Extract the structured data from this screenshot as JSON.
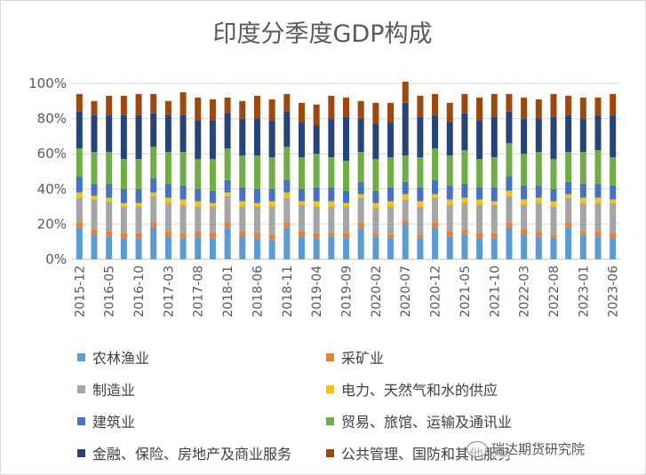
{
  "chart_data": {
    "type": "bar",
    "stacked": true,
    "title": "印度分季度GDP构成",
    "ylim": [
      0,
      100
    ],
    "yticks": [
      "0%",
      "20%",
      "40%",
      "60%",
      "80%",
      "100%"
    ],
    "categories": [
      "2015-12",
      "2016-03",
      "2016-05",
      "2016-08",
      "2016-10",
      "2017-01",
      "2017-03",
      "2017-06",
      "2017-08",
      "2017-11",
      "2018-01",
      "2018-04",
      "2018-06",
      "2018-09",
      "2018-11",
      "2019-02",
      "2019-04",
      "2019-07",
      "2019-09",
      "2019-12",
      "2020-02",
      "2020-05",
      "2020-07",
      "2020-10",
      "2020-12",
      "2021-03",
      "2021-05",
      "2021-08",
      "2021-10",
      "2022-01",
      "2022-03",
      "2022-06",
      "2022-08",
      "2022-11",
      "2023-01",
      "2023-04",
      "2023-06"
    ],
    "xtick_labels": [
      "2015-12",
      "2016-05",
      "2016-10",
      "2017-03",
      "2017-08",
      "2018-01",
      "2018-06",
      "2018-11",
      "2019-04",
      "2019-09",
      "2020-02",
      "2020-07",
      "2020-12",
      "2021-05",
      "2021-10",
      "2022-03",
      "2022-08",
      "2023-01",
      "2023-06"
    ],
    "series": [
      {
        "name": "农林渔业",
        "color": "#5b9bd5",
        "values": [
          18,
          14,
          13,
          12,
          12,
          18,
          13,
          12,
          13,
          12,
          18,
          13,
          12,
          11,
          18,
          13,
          12,
          13,
          12,
          18,
          13,
          12,
          20,
          12,
          18,
          13,
          14,
          12,
          12,
          18,
          14,
          13,
          12,
          18,
          14,
          13,
          12
        ]
      },
      {
        "name": "采矿业",
        "color": "#ed7d31",
        "values": [
          3,
          3,
          3,
          3,
          3,
          3,
          3,
          3,
          3,
          3,
          3,
          3,
          3,
          3,
          3,
          3,
          3,
          2,
          3,
          3,
          2,
          2,
          2,
          2,
          3,
          3,
          3,
          3,
          3,
          3,
          3,
          3,
          2,
          3,
          2,
          3,
          3
        ]
      },
      {
        "name": "制造业",
        "color": "#a5a5a5",
        "values": [
          14,
          17,
          17,
          15,
          15,
          15,
          16,
          16,
          14,
          15,
          15,
          14,
          15,
          16,
          14,
          15,
          15,
          15,
          15,
          14,
          14,
          16,
          12,
          16,
          14,
          15,
          15,
          16,
          16,
          15,
          14,
          16,
          16,
          14,
          16,
          16,
          17
        ]
      },
      {
        "name": "电力、天然气和水的供应",
        "color": "#ffc000",
        "values": [
          3,
          2,
          2,
          2,
          2,
          2,
          3,
          3,
          3,
          2,
          2,
          3,
          2,
          3,
          3,
          2,
          3,
          3,
          2,
          2,
          3,
          3,
          3,
          3,
          2,
          3,
          3,
          3,
          2,
          3,
          3,
          3,
          3,
          2,
          3,
          3,
          2
        ]
      },
      {
        "name": "建筑业",
        "color": "#4472c4",
        "values": [
          9,
          7,
          8,
          8,
          8,
          8,
          8,
          8,
          7,
          7,
          7,
          8,
          8,
          7,
          7,
          7,
          8,
          8,
          7,
          7,
          7,
          8,
          7,
          8,
          8,
          8,
          8,
          7,
          8,
          8,
          8,
          7,
          7,
          7,
          8,
          8,
          8
        ]
      },
      {
        "name": "贸易、旅馆、运输及通讯业",
        "color": "#70ad47",
        "values": [
          16,
          18,
          18,
          17,
          17,
          18,
          18,
          19,
          17,
          18,
          18,
          18,
          19,
          18,
          19,
          18,
          19,
          17,
          17,
          17,
          18,
          17,
          15,
          17,
          18,
          17,
          19,
          16,
          17,
          19,
          18,
          19,
          17,
          17,
          18,
          19,
          16
        ]
      },
      {
        "name": "金融、保险、房地产及商业服务",
        "color": "#264478",
        "values": [
          21,
          21,
          21,
          25,
          25,
          19,
          21,
          21,
          22,
          22,
          20,
          21,
          21,
          21,
          20,
          20,
          16,
          22,
          25,
          19,
          20,
          20,
          30,
          23,
          19,
          19,
          21,
          22,
          23,
          18,
          20,
          19,
          24,
          21,
          19,
          20,
          24
        ]
      },
      {
        "name": "公共管理、国防和其他服务",
        "color": "#9e480e",
        "values": [
          10,
          8,
          11,
          11,
          12,
          11,
          8,
          13,
          13,
          12,
          9,
          10,
          13,
          12,
          10,
          11,
          12,
          13,
          11,
          10,
          12,
          11,
          12,
          12,
          12,
          11,
          11,
          13,
          13,
          10,
          12,
          11,
          13,
          11,
          12,
          10,
          12
        ]
      }
    ],
    "grid": true,
    "legend_position": "bottom"
  },
  "watermark": {
    "text": "瑞达期货研究院"
  }
}
